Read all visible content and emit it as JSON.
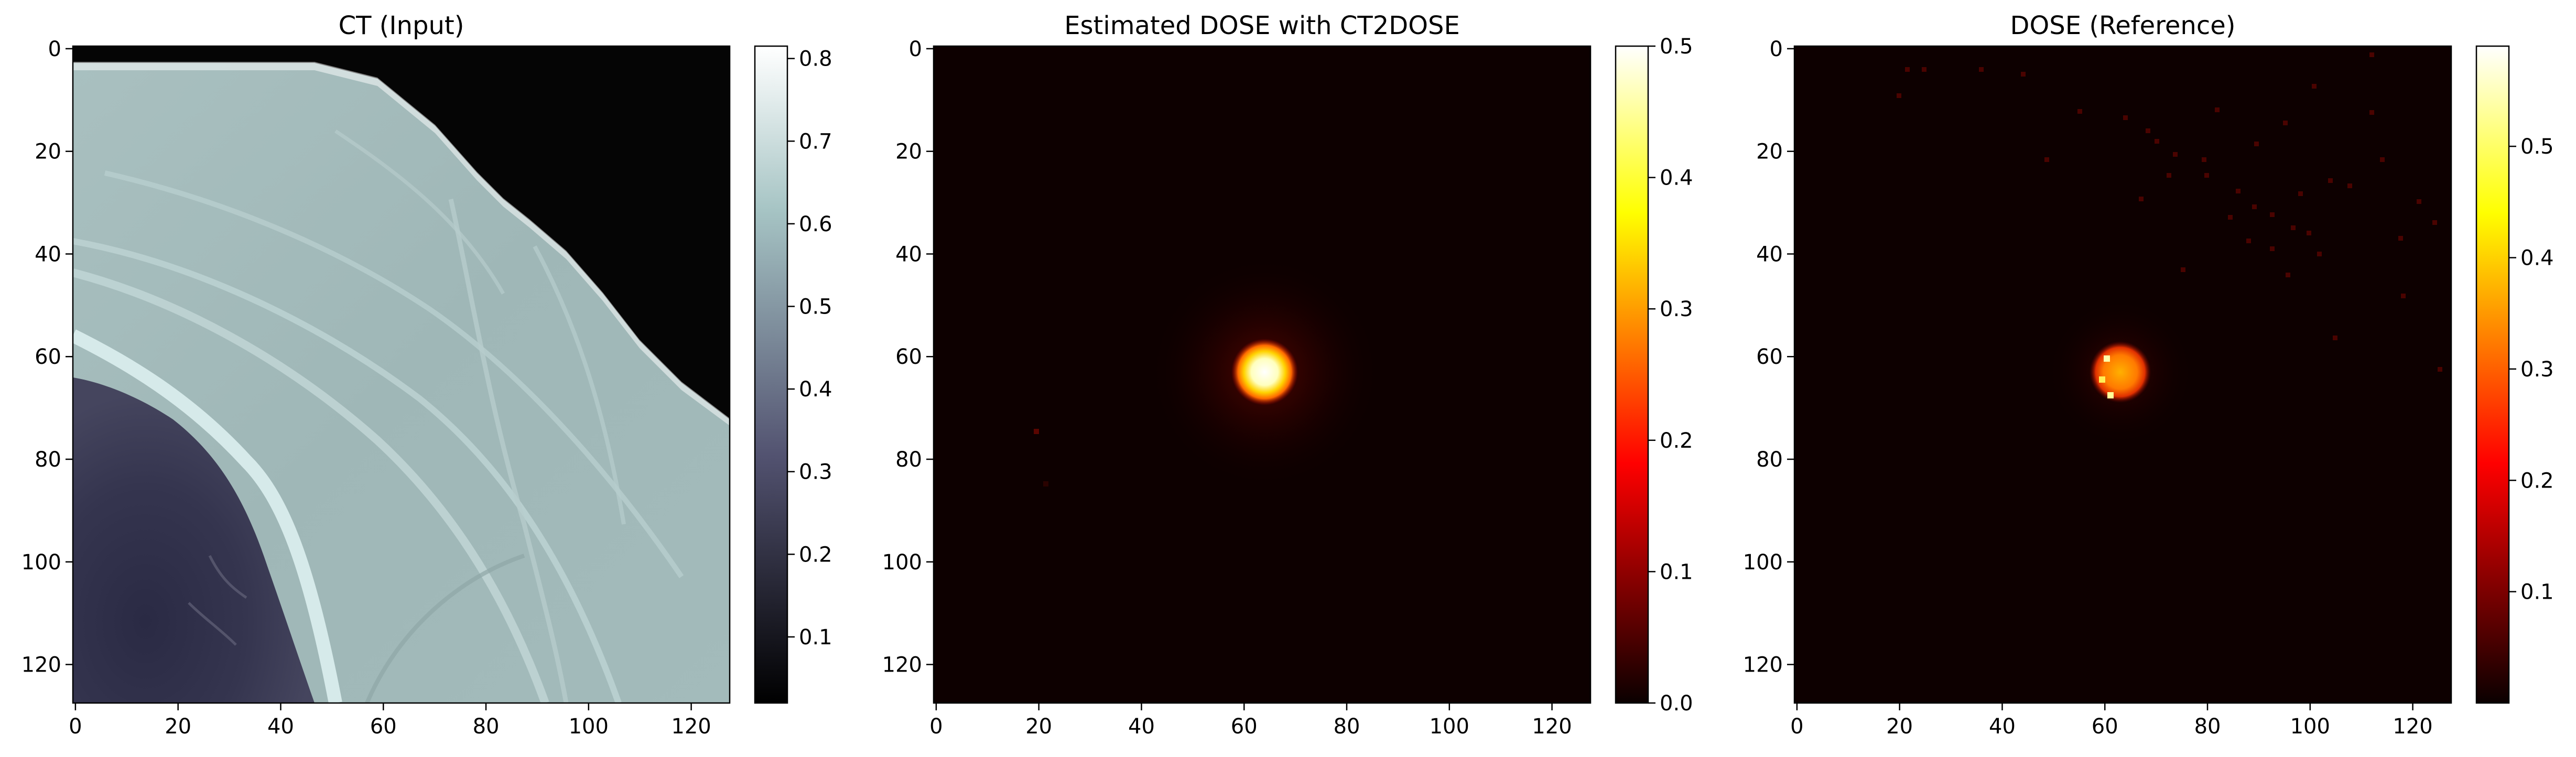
{
  "figure_title": "",
  "chart_data": [
    {
      "type": "heatmap",
      "title": "CT (Input)",
      "colormap": "bone",
      "xlim": [
        0,
        128
      ],
      "ylim": [
        128,
        0
      ],
      "x_ticks": [
        0,
        20,
        40,
        60,
        80,
        100,
        120
      ],
      "y_ticks": [
        0,
        20,
        40,
        60,
        80,
        100,
        120
      ],
      "x_tick_labels": [
        "0",
        "20",
        "40",
        "60",
        "80",
        "100",
        "120"
      ],
      "y_tick_labels": [
        "0",
        "20",
        "40",
        "60",
        "80",
        "100",
        "120"
      ],
      "colorbar": {
        "range": [
          0.02,
          0.815
        ],
        "ticks": [
          0.1,
          0.2,
          0.3,
          0.4,
          0.5,
          0.6,
          0.7,
          0.8
        ],
        "tick_labels": [
          "0.1",
          "0.2",
          "0.3",
          "0.4",
          "0.5",
          "0.6",
          "0.7",
          "0.8"
        ]
      },
      "content": "Axial CT slice: dark air in upper-right corner, gray soft tissue with curved lighter bone band, dark lung region lower-left"
    },
    {
      "type": "heatmap",
      "title": "Estimated DOSE with CT2DOSE",
      "colormap": "hot",
      "xlim": [
        0,
        128
      ],
      "ylim": [
        128,
        0
      ],
      "x_ticks": [
        0,
        20,
        40,
        60,
        80,
        100,
        120
      ],
      "y_ticks": [
        0,
        20,
        40,
        60,
        80,
        100,
        120
      ],
      "x_tick_labels": [
        "0",
        "20",
        "40",
        "60",
        "80",
        "100",
        "120"
      ],
      "y_tick_labels": [
        "0",
        "20",
        "40",
        "60",
        "80",
        "100",
        "120"
      ],
      "colorbar": {
        "range": [
          0.0,
          0.5
        ],
        "ticks": [
          0.0,
          0.1,
          0.2,
          0.3,
          0.4,
          0.5
        ],
        "tick_labels": [
          "0.0",
          "0.1",
          "0.2",
          "0.3",
          "0.4",
          "0.5"
        ]
      },
      "hotspot": {
        "center_x": 64,
        "center_y": 63,
        "peak": 0.5
      },
      "content": "Near-zero dose field with a bright circular hotspot near (64, 63) surrounded by a diffuse red halo"
    },
    {
      "type": "heatmap",
      "title": "DOSE (Reference)",
      "colormap": "hot",
      "xlim": [
        0,
        128
      ],
      "ylim": [
        128,
        0
      ],
      "x_ticks": [
        0,
        20,
        40,
        60,
        80,
        100,
        120
      ],
      "y_ticks": [
        0,
        20,
        40,
        60,
        80,
        100,
        120
      ],
      "x_tick_labels": [
        "0",
        "20",
        "40",
        "60",
        "80",
        "100",
        "120"
      ],
      "y_tick_labels": [
        "0",
        "20",
        "40",
        "60",
        "80",
        "100",
        "120"
      ],
      "colorbar": {
        "range": [
          0.0,
          0.59
        ],
        "ticks": [
          0.1,
          0.2,
          0.3,
          0.4,
          0.5
        ],
        "tick_labels": [
          "0.1",
          "0.2",
          "0.3",
          "0.4",
          "0.5"
        ]
      },
      "hotspot": {
        "center_x": 63,
        "center_y": 63,
        "peak": 0.59
      },
      "content": "Near-zero dose field with a smaller orange hotspot near (63, 63) and sparse red speckles in the upper right"
    }
  ]
}
